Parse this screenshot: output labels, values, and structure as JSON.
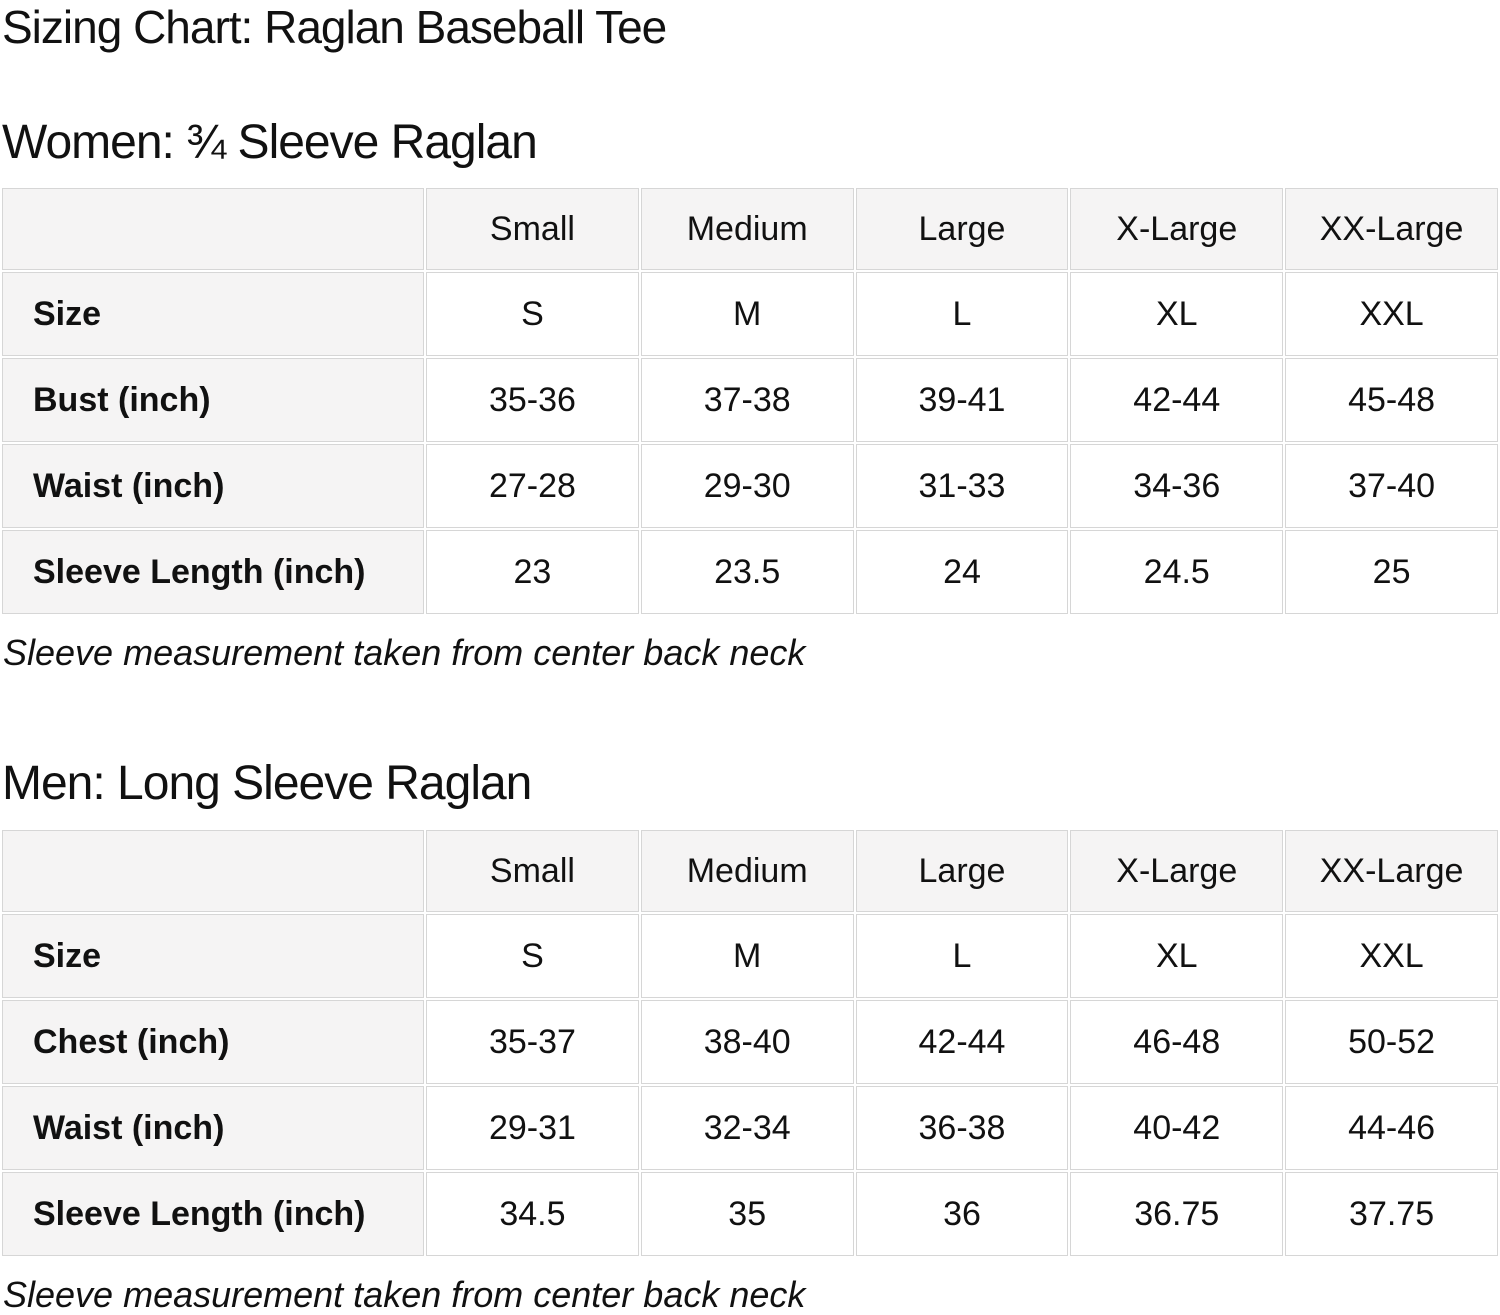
{
  "page": {
    "title": "Sizing Chart: Raglan Baseball Tee"
  },
  "colors": {
    "cell_background": "#f5f4f4",
    "cell_border": "#d6d6d6",
    "text": "#111111",
    "page_background": "#ffffff"
  },
  "sections": [
    {
      "heading": "Women: ¾ Sleeve Raglan",
      "note": "Sleeve measurement taken from center back neck",
      "table": {
        "columns": [
          "",
          "Small",
          "Medium",
          "Large",
          "X-Large",
          "XX-Large"
        ],
        "rows": [
          {
            "label": "Size",
            "values": [
              "S",
              "M",
              "L",
              "XL",
              "XXL"
            ]
          },
          {
            "label": "Bust (inch)",
            "values": [
              "35-36",
              "37-38",
              "39-41",
              "42-44",
              "45-48"
            ]
          },
          {
            "label": "Waist (inch)",
            "values": [
              "27-28",
              "29-30",
              "31-33",
              "34-36",
              "37-40"
            ]
          },
          {
            "label": "Sleeve Length (inch)",
            "values": [
              "23",
              "23.5",
              "24",
              "24.5",
              "25"
            ]
          }
        ]
      }
    },
    {
      "heading": "Men: Long Sleeve Raglan",
      "note": "Sleeve measurement taken from center back neck",
      "table": {
        "columns": [
          "",
          "Small",
          "Medium",
          "Large",
          "X-Large",
          "XX-Large"
        ],
        "rows": [
          {
            "label": "Size",
            "values": [
              "S",
              "M",
              "L",
              "XL",
              "XXL"
            ]
          },
          {
            "label": "Chest (inch)",
            "values": [
              "35-37",
              "38-40",
              "42-44",
              "46-48",
              "50-52"
            ]
          },
          {
            "label": "Waist (inch)",
            "values": [
              "29-31",
              "32-34",
              "36-38",
              "40-42",
              "44-46"
            ]
          },
          {
            "label": "Sleeve Length (inch)",
            "values": [
              "34.5",
              "35",
              "36",
              "36.75",
              "37.75"
            ]
          }
        ]
      }
    }
  ]
}
